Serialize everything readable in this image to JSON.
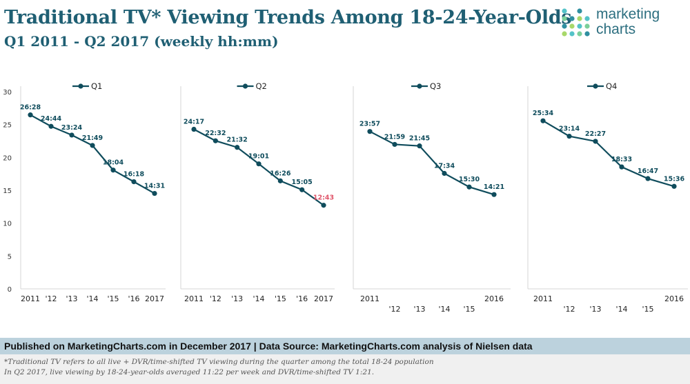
{
  "header": {
    "title": "Traditional TV* Viewing Trends Among 18-24-Year-Olds",
    "subtitle": "Q1 2011 - Q2 2017 (weekly hh:mm)"
  },
  "logo": {
    "line1": "marketing",
    "line2": "charts"
  },
  "colors": {
    "line": "#0f4c5c",
    "title": "#1f5f73",
    "highlight_label": "#e0556a",
    "logo_dots": [
      "#54c3c8",
      "#7bcf9a",
      "#2f8fa0",
      "#a8d86a"
    ]
  },
  "chart_data": {
    "type": "line",
    "title": "Traditional TV* Viewing Trends Among 18-24-Year-Olds",
    "units": "weekly hours",
    "ylim": [
      0,
      30
    ],
    "yticks": [
      0,
      5,
      10,
      15,
      20,
      25,
      30
    ],
    "grid": false,
    "panels": [
      {
        "name": "Q1",
        "x": [
          "2011",
          "'12",
          "'13",
          "'14",
          "'15",
          "'16",
          "2017"
        ],
        "values": [
          26.47,
          24.73,
          23.4,
          21.82,
          18.07,
          16.3,
          14.52
        ],
        "labels": [
          "26:28",
          "24:44",
          "23:24",
          "21:49",
          "18:04",
          "16:18",
          "14:31"
        ],
        "highlight_index": null
      },
      {
        "name": "Q2",
        "x": [
          "2011",
          "'12",
          "'13",
          "'14",
          "'15",
          "'16",
          "2017"
        ],
        "values": [
          24.28,
          22.53,
          21.53,
          19.02,
          16.43,
          15.08,
          12.72
        ],
        "labels": [
          "24:17",
          "22:32",
          "21:32",
          "19:01",
          "16:26",
          "15:05",
          "12:43"
        ],
        "highlight_index": 6
      },
      {
        "name": "Q3",
        "x": [
          "2011",
          "'12",
          "'13",
          "'14",
          "'15",
          "2016"
        ],
        "values": [
          23.95,
          21.98,
          21.75,
          17.57,
          15.5,
          14.35
        ],
        "labels": [
          "23:57",
          "21:59",
          "21:45",
          "17:34",
          "15:30",
          "14:21"
        ],
        "highlight_index": null
      },
      {
        "name": "Q4",
        "x": [
          "2011",
          "'12",
          "'13",
          "'14",
          "'15",
          "2016"
        ],
        "values": [
          25.57,
          23.23,
          22.45,
          18.55,
          16.78,
          15.6
        ],
        "labels": [
          "25:34",
          "23:14",
          "22:27",
          "18:33",
          "16:47",
          "15:36"
        ],
        "highlight_index": null
      }
    ]
  },
  "footer": {
    "source": "Published on MarketingCharts.com in December 2017 | Data Source: MarketingCharts.com analysis of Nielsen data",
    "note1": "*Traditional TV refers to all live + DVR/time-shifted TV viewing during the quarter among the total 18-24 population",
    "note2": "In Q2 2017, live viewing by 18-24-year-olds averaged 11:22 per week and DVR/time-shifted TV 1:21."
  }
}
